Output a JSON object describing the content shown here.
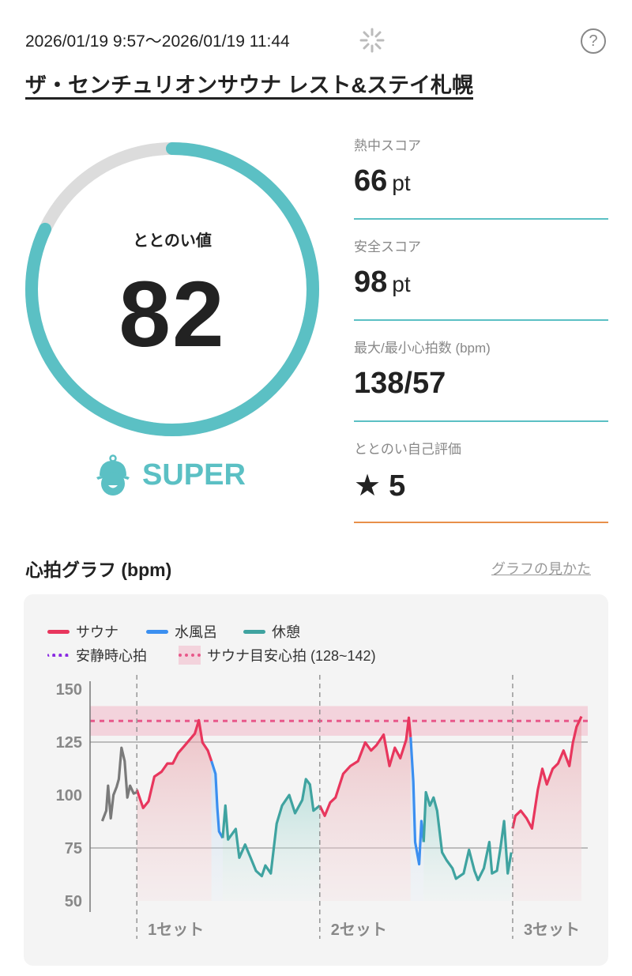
{
  "header": {
    "datetime": "2026/01/19 9:57～2026/01/19 11:44",
    "help_label": "?",
    "facility": "ザ・センチュリオンサウナ レスト&ステイ札幌"
  },
  "score": {
    "label": "ととのい値",
    "value": "82",
    "progress": 82,
    "rank": "SUPER"
  },
  "stats": [
    {
      "label": "熱中スコア",
      "value": "66",
      "unit": "pt"
    },
    {
      "label": "安全スコア",
      "value": "98",
      "unit": "pt"
    },
    {
      "label": "最大/最小心拍数 (bpm)",
      "value": "138/57",
      "unit": ""
    },
    {
      "label": "ととのい自己評価",
      "value": "5",
      "unit": ""
    }
  ],
  "colors": {
    "accent": "#5bc0c4",
    "sauna": "#e8365d",
    "water": "#3b8ff0",
    "rest": "#3fa3a0",
    "resting": "#8a2be2",
    "target": "#e8588a",
    "rating_line": "#e8904a"
  },
  "graph": {
    "title": "心拍グラフ (bpm)",
    "help_link": "グラフの見かた"
  },
  "chart_data": {
    "type": "line",
    "ylabel": "bpm",
    "ylim": [
      50,
      150
    ],
    "xlim": [
      -3,
      107
    ],
    "yticks": [
      "150",
      "125",
      "100",
      "75",
      "50"
    ],
    "legend": {
      "sauna": "サウナ",
      "water": "水風呂",
      "rest": "休憩",
      "resting": "安静時心拍",
      "target": "サウナ目安心拍 (128~142)"
    },
    "target_range": [
      128,
      142
    ],
    "target_line": 135,
    "sets": [
      {
        "label": "1セット",
        "t": 7.4
      },
      {
        "label": "2セット",
        "t": 48.1
      },
      {
        "label": "3セット",
        "t": 91.0
      }
    ],
    "series": [
      {
        "phase": "pre",
        "points": [
          [
            -0.3,
            87.7
          ],
          [
            0.6,
            92.6
          ],
          [
            1.0,
            104.4
          ],
          [
            1.6,
            89
          ],
          [
            2.2,
            100
          ],
          [
            2.9,
            103.8
          ],
          [
            3.4,
            107.5
          ],
          [
            4.0,
            122.3
          ],
          [
            4.7,
            116
          ],
          [
            5.3,
            98.8
          ],
          [
            5.9,
            104.4
          ],
          [
            6.7,
            100.7
          ],
          [
            7.4,
            101.3
          ]
        ]
      },
      {
        "phase": "sauna",
        "points": [
          [
            7.4,
            102.5
          ],
          [
            8.8,
            93.9
          ],
          [
            10.0,
            97
          ],
          [
            11.3,
            108.7
          ],
          [
            12.9,
            111
          ],
          [
            14.2,
            114.9
          ],
          [
            15.4,
            114.9
          ],
          [
            16.6,
            119.8
          ],
          [
            17.9,
            123
          ],
          [
            19.1,
            126
          ],
          [
            20.3,
            129
          ],
          [
            21.2,
            135.3
          ],
          [
            22.0,
            124.8
          ],
          [
            23.2,
            121
          ],
          [
            24.0,
            116
          ]
        ]
      },
      {
        "phase": "water",
        "points": [
          [
            24.0,
            116
          ],
          [
            24.9,
            110
          ],
          [
            25.3,
            93.9
          ],
          [
            25.7,
            82.8
          ],
          [
            26.5,
            79.7
          ]
        ]
      },
      {
        "phase": "rest",
        "points": [
          [
            26.5,
            79.7
          ],
          [
            27.1,
            95
          ],
          [
            27.7,
            79
          ],
          [
            29.4,
            84
          ],
          [
            30.2,
            70.4
          ],
          [
            31.5,
            76.6
          ],
          [
            32.7,
            70.4
          ],
          [
            33.9,
            64.2
          ],
          [
            35.2,
            61.7
          ],
          [
            36.0,
            66.7
          ],
          [
            37.2,
            63
          ],
          [
            38.5,
            86.5
          ],
          [
            39.7,
            95
          ],
          [
            41.3,
            100
          ],
          [
            42.6,
            91.4
          ],
          [
            44.2,
            97.6
          ],
          [
            45.0,
            107.5
          ],
          [
            45.9,
            105
          ],
          [
            46.7,
            92.6
          ],
          [
            48.1,
            95
          ]
        ]
      },
      {
        "phase": "sauna",
        "points": [
          [
            48.1,
            95
          ],
          [
            49.2,
            90.2
          ],
          [
            50.4,
            96.4
          ],
          [
            51.6,
            98.8
          ],
          [
            53.3,
            110
          ],
          [
            54.9,
            113.7
          ],
          [
            56.6,
            116
          ],
          [
            58.2,
            124.8
          ],
          [
            59.5,
            121
          ],
          [
            60.7,
            123.5
          ],
          [
            62.3,
            128.5
          ],
          [
            63.6,
            113.7
          ],
          [
            64.8,
            122.3
          ],
          [
            66.0,
            117.4
          ],
          [
            67.3,
            126
          ],
          [
            67.9,
            136.5
          ],
          [
            68.3,
            127.3
          ]
        ]
      },
      {
        "phase": "water",
        "points": [
          [
            68.3,
            127.3
          ],
          [
            68.9,
            106.2
          ],
          [
            69.3,
            77.8
          ],
          [
            70.2,
            67.3
          ],
          [
            70.7,
            87.7
          ],
          [
            71.2,
            77.8
          ]
        ]
      },
      {
        "phase": "rest",
        "points": [
          [
            71.2,
            77.8
          ],
          [
            71.7,
            101.3
          ],
          [
            72.6,
            95
          ],
          [
            73.4,
            98.8
          ],
          [
            74.2,
            92.6
          ],
          [
            75.3,
            72.9
          ],
          [
            76.3,
            69.2
          ],
          [
            77.6,
            65.4
          ],
          [
            78.4,
            60.5
          ],
          [
            80.1,
            63
          ],
          [
            81.3,
            74.1
          ],
          [
            82.5,
            64.2
          ],
          [
            83.3,
            59.9
          ],
          [
            84.6,
            65.4
          ],
          [
            85.8,
            77.8
          ],
          [
            86.4,
            63
          ],
          [
            87.5,
            64.2
          ],
          [
            88.3,
            75.3
          ],
          [
            89.1,
            87.7
          ],
          [
            89.9,
            63
          ],
          [
            90.7,
            72.9
          ]
        ]
      },
      {
        "phase": "sauna",
        "points": [
          [
            91.0,
            84.2
          ],
          [
            91.6,
            90.2
          ],
          [
            92.8,
            92.6
          ],
          [
            94.1,
            89
          ],
          [
            95.3,
            84.2
          ],
          [
            96.6,
            102.5
          ],
          [
            97.6,
            112.4
          ],
          [
            98.6,
            105
          ],
          [
            99.9,
            112.4
          ],
          [
            101.1,
            114.9
          ],
          [
            102.3,
            121
          ],
          [
            103.6,
            113.7
          ],
          [
            104.4,
            124.8
          ],
          [
            105.2,
            132.2
          ],
          [
            106.3,
            137.1
          ]
        ]
      }
    ]
  }
}
